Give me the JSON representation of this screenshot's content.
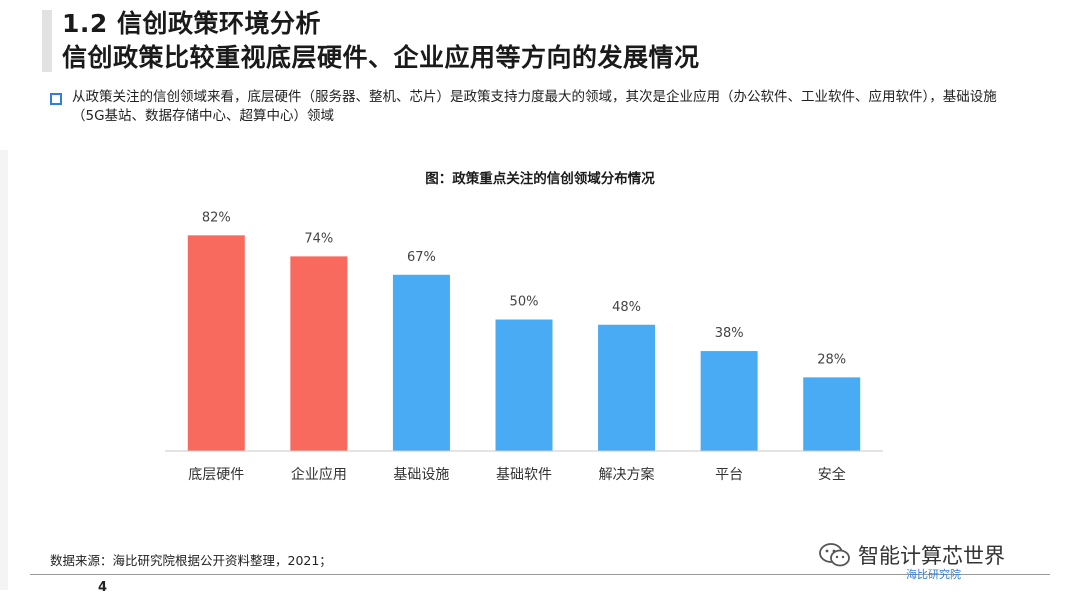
{
  "header": {
    "title_line1": "1.2 信创政策环境分析",
    "title_line2": "信创政策比较重视底层硬件、企业应用等方向的发展情况"
  },
  "bullet": {
    "text": "从政策关注的信创领域来看，底层硬件（服务器、整机、芯片）是政策支持力度最大的领域，其次是企业应用（办公软件、工业软件、应用软件），基础设施（5G基站、数据存储中心、超算中心）领域"
  },
  "chart_data": {
    "type": "bar",
    "title": "图：政策重点关注的信创领域分布情况",
    "categories": [
      "底层硬件",
      "企业应用",
      "基础设施",
      "基础软件",
      "解决方案",
      "平台",
      "安全"
    ],
    "values": [
      82,
      74,
      67,
      50,
      48,
      38,
      28
    ],
    "value_labels": [
      "82%",
      "74%",
      "67%",
      "50%",
      "48%",
      "38%",
      "28%"
    ],
    "colors": [
      "#f86a5e",
      "#f86a5e",
      "#4aabf5",
      "#4aabf5",
      "#4aabf5",
      "#4aabf5",
      "#4aabf5"
    ],
    "ylim": [
      0,
      100
    ],
    "grid": false,
    "xlabel": "",
    "ylabel": ""
  },
  "footer": {
    "source": "数据来源：海比研究院根据公开资料整理，2021；",
    "page_number": "4",
    "brand": "智能计算芯世界",
    "watermark": "海比研究院"
  }
}
